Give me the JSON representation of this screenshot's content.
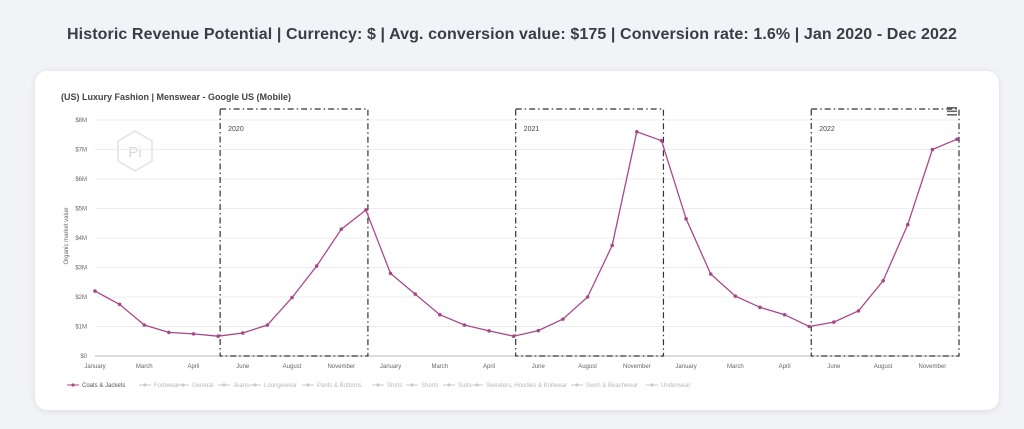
{
  "page": {
    "headline": "Historic Revenue Potential | Currency: $ | Avg. conversion value: $175 | Conversion rate: 1.6% | Jan 2020 - Dec 2022"
  },
  "chart_data": {
    "type": "line",
    "title": "(US) Luxury Fashion | Menswear - Google US (Mobile)",
    "ylabel": "Organic market value",
    "ylim": [
      0,
      8000000
    ],
    "yticks": [
      {
        "v": 0,
        "label": "$0"
      },
      {
        "v": 1000000,
        "label": "$1M"
      },
      {
        "v": 2000000,
        "label": "$2M"
      },
      {
        "v": 3000000,
        "label": "$3M"
      },
      {
        "v": 4000000,
        "label": "$4M"
      },
      {
        "v": 5000000,
        "label": "$5M"
      },
      {
        "v": 6000000,
        "label": "$6M"
      },
      {
        "v": 7000000,
        "label": "$7M"
      },
      {
        "v": 8000000,
        "label": "$8M"
      }
    ],
    "xticks": [
      {
        "i": 0,
        "label": "January"
      },
      {
        "i": 2,
        "label": "March"
      },
      {
        "i": 4,
        "label": "April"
      },
      {
        "i": 6,
        "label": "June"
      },
      {
        "i": 8,
        "label": "August"
      },
      {
        "i": 10,
        "label": "November"
      },
      {
        "i": 12,
        "label": "January"
      },
      {
        "i": 14,
        "label": "March"
      },
      {
        "i": 16,
        "label": "April"
      },
      {
        "i": 18,
        "label": "June"
      },
      {
        "i": 20,
        "label": "August"
      },
      {
        "i": 22,
        "label": "November"
      },
      {
        "i": 24,
        "label": "January"
      },
      {
        "i": 26,
        "label": "March"
      },
      {
        "i": 28,
        "label": "April"
      },
      {
        "i": 30,
        "label": "June"
      },
      {
        "i": 32,
        "label": "August"
      },
      {
        "i": 34,
        "label": "November"
      }
    ],
    "series": [
      {
        "name": "Coats & Jackets",
        "color": "#a8488c",
        "values": [
          2200000,
          1750000,
          1050000,
          800000,
          750000,
          670000,
          780000,
          1050000,
          1980000,
          3050000,
          4300000,
          4950000,
          2800000,
          2100000,
          1400000,
          1050000,
          850000,
          670000,
          860000,
          1250000,
          2000000,
          3750000,
          7600000,
          7300000,
          4650000,
          2780000,
          2030000,
          1650000,
          1400000,
          1000000,
          1150000,
          1530000,
          2550000,
          4450000,
          7000000,
          7350000
        ]
      }
    ],
    "legend": {
      "placement": "bottom-left",
      "items": [
        "Coats & Jackets",
        "Footwear",
        "General",
        "Jeans",
        "Loungewear",
        "Pants & Bottoms",
        "Shirts",
        "Shorts",
        "Suits",
        "Sweaters, Hoodies & Knitwear",
        "Swim & Beachwear",
        "Underwear"
      ],
      "active_color": "#a8488c",
      "inactive_color": "#c9cad2"
    },
    "highlights": [
      {
        "label": "2020",
        "start": 5,
        "end": 11
      },
      {
        "label": "2021",
        "start": 17,
        "end": 23
      },
      {
        "label": "2022",
        "start": 29,
        "end": 35
      }
    ],
    "grid": true,
    "watermark": "Pi"
  }
}
